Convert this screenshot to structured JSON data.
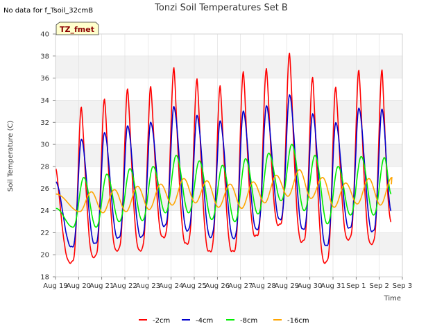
{
  "chart_data": {
    "type": "line",
    "title": "Tonzi Soil Temperatures Set B",
    "no_data_note": "No data for f_Tsoil_32cmB",
    "badge": "TZ_fmet",
    "xlabel": "Time",
    "ylabel": "Soil Temperature (C)",
    "ylim": [
      18,
      40
    ],
    "yticks": [
      18,
      20,
      22,
      24,
      26,
      28,
      30,
      32,
      34,
      36,
      38,
      40
    ],
    "xlim": [
      0,
      15
    ],
    "xticks": [
      0,
      1,
      2,
      3,
      4,
      5,
      6,
      7,
      8,
      9,
      10,
      11,
      12,
      13,
      14,
      15
    ],
    "xtick_labels": [
      "Aug 19",
      "Aug 20",
      "Aug 21",
      "Aug 22",
      "Aug 23",
      "Aug 24",
      "Aug 25",
      "Aug 26",
      "Aug 27",
      "Aug 28",
      "Aug 29",
      "Aug 30",
      "Aug 31",
      "Sep 1",
      "Sep 2",
      "Sep 3"
    ],
    "grid": true,
    "background_bands": true,
    "legend_position": "bottom-center",
    "series": [
      {
        "name": "-2cm",
        "color": "#ff0000",
        "days": [
          {
            "min": 19.3,
            "max": 33.4
          },
          {
            "min": 19.8,
            "max": 34.1
          },
          {
            "min": 20.4,
            "max": 35.0
          },
          {
            "min": 20.4,
            "max": 35.2
          },
          {
            "min": 21.6,
            "max": 36.9
          },
          {
            "min": 21.0,
            "max": 35.9
          },
          {
            "min": 20.3,
            "max": 35.3
          },
          {
            "min": 20.3,
            "max": 36.6
          },
          {
            "min": 21.7,
            "max": 36.9
          },
          {
            "min": 22.7,
            "max": 38.3
          },
          {
            "min": 21.2,
            "max": 36.1
          },
          {
            "min": 19.3,
            "max": 35.2
          },
          {
            "min": 21.4,
            "max": 36.7
          },
          {
            "min": 21.0,
            "max": 36.7
          }
        ],
        "end": 23.0
      },
      {
        "name": "-4cm",
        "color": "#0000cc",
        "days": [
          {
            "min": 20.7,
            "max": 30.5
          },
          {
            "min": 21.0,
            "max": 31.1
          },
          {
            "min": 21.5,
            "max": 31.7
          },
          {
            "min": 21.6,
            "max": 32.0
          },
          {
            "min": 22.6,
            "max": 33.4
          },
          {
            "min": 22.2,
            "max": 32.6
          },
          {
            "min": 21.6,
            "max": 32.1
          },
          {
            "min": 21.5,
            "max": 33.0
          },
          {
            "min": 22.3,
            "max": 33.5
          },
          {
            "min": 23.2,
            "max": 34.5
          },
          {
            "min": 22.3,
            "max": 32.8
          },
          {
            "min": 20.8,
            "max": 32.0
          },
          {
            "min": 22.4,
            "max": 33.3
          },
          {
            "min": 22.1,
            "max": 33.2
          }
        ],
        "end": 24.0
      },
      {
        "name": "-8cm",
        "color": "#00ee00",
        "days": [
          {
            "min": 22.5,
            "max": 27.0
          },
          {
            "min": 22.5,
            "max": 27.3
          },
          {
            "min": 23.0,
            "max": 27.8
          },
          {
            "min": 23.1,
            "max": 28.0
          },
          {
            "min": 23.8,
            "max": 29.0
          },
          {
            "min": 23.8,
            "max": 28.5
          },
          {
            "min": 23.2,
            "max": 28.1
          },
          {
            "min": 23.0,
            "max": 28.7
          },
          {
            "min": 23.7,
            "max": 29.2
          },
          {
            "min": 24.9,
            "max": 30.0
          },
          {
            "min": 24.0,
            "max": 29.0
          },
          {
            "min": 22.8,
            "max": 28.0
          },
          {
            "min": 23.6,
            "max": 28.9
          },
          {
            "min": 23.6,
            "max": 28.8
          }
        ],
        "start": 24.2,
        "end": 25.5
      },
      {
        "name": "-16cm",
        "color": "#ffa500",
        "days": [
          {
            "min": 23.9,
            "max": 25.7
          },
          {
            "min": 23.8,
            "max": 25.9
          },
          {
            "min": 23.9,
            "max": 26.2
          },
          {
            "min": 24.1,
            "max": 26.4
          },
          {
            "min": 24.5,
            "max": 26.9
          },
          {
            "min": 24.7,
            "max": 26.7
          },
          {
            "min": 24.3,
            "max": 26.4
          },
          {
            "min": 24.2,
            "max": 26.6
          },
          {
            "min": 24.7,
            "max": 27.2
          },
          {
            "min": 25.3,
            "max": 27.7
          },
          {
            "min": 25.1,
            "max": 27.0
          },
          {
            "min": 24.3,
            "max": 26.5
          },
          {
            "min": 24.6,
            "max": 26.9
          },
          {
            "min": 24.5,
            "max": 27.0
          }
        ],
        "start": 25.5,
        "end": 26.4
      }
    ]
  }
}
